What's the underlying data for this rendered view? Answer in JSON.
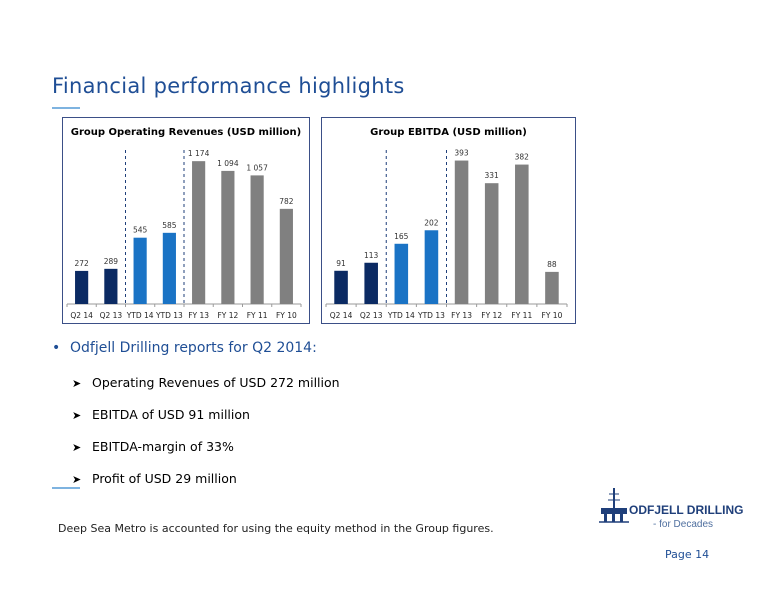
{
  "page": {
    "title": "Financial performance highlights",
    "footnote": "Deep Sea Metro is accounted for using the equity method in the Group figures.",
    "page_number": "Page 14"
  },
  "bullets": {
    "main": "Odfjell Drilling reports for Q2 2014:",
    "sub": [
      "Operating Revenues of USD 272 million",
      "EBITDA of USD 91 million",
      "EBITDA-margin of 33%",
      "Profit of USD 29 million"
    ]
  },
  "logo": {
    "name": "ODFJELL DRILLING",
    "tagline": "- for Decades"
  },
  "colors": {
    "title": "#1f4e95",
    "navy_bar": "#0b2a63",
    "blue_bar": "#1a73c5",
    "gray_bar": "#808080",
    "chart_border": "#3b4f87"
  },
  "chart_data": [
    {
      "type": "bar",
      "title": "Group Operating Revenues (USD million)",
      "categories": [
        "Q2 14",
        "Q2 13",
        "YTD 14",
        "YTD 13",
        "FY 13",
        "FY 12",
        "FY 11",
        "FY 10"
      ],
      "values": [
        272,
        289,
        545,
        585,
        1174,
        1094,
        1057,
        782
      ],
      "value_labels": [
        "272",
        "289",
        "545",
        "585",
        "1 174",
        "1 094",
        "1 057",
        "782"
      ],
      "bar_colors": [
        "#0b2a63",
        "#0b2a63",
        "#1a73c5",
        "#1a73c5",
        "#808080",
        "#808080",
        "#808080",
        "#808080"
      ],
      "ylim": [
        0,
        1200
      ],
      "separators_after": [
        1,
        3
      ],
      "grid": false
    },
    {
      "type": "bar",
      "title": "Group EBITDA (USD million)",
      "categories": [
        "Q2 14",
        "Q2 13",
        "YTD 14",
        "YTD 13",
        "FY 13",
        "FY 12",
        "FY 11",
        "FY 10"
      ],
      "values": [
        91,
        113,
        165,
        202,
        393,
        331,
        382,
        88
      ],
      "value_labels": [
        "91",
        "113",
        "165",
        "202",
        "393",
        "331",
        "382",
        "88"
      ],
      "bar_colors": [
        "#0b2a63",
        "#0b2a63",
        "#1a73c5",
        "#1a73c5",
        "#808080",
        "#808080",
        "#808080",
        "#808080"
      ],
      "ylim": [
        0,
        400
      ],
      "separators_after": [
        1,
        3
      ],
      "grid": false
    }
  ]
}
